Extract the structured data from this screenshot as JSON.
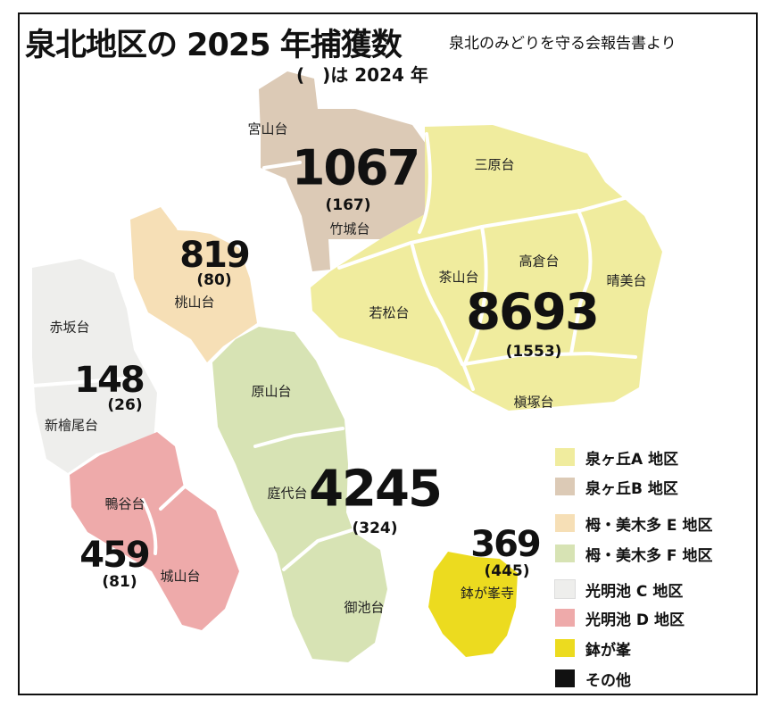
{
  "title": "泉北地区の 2025 年捕獲数",
  "subtitle": "(　)は 2024 年",
  "source": "泉北のみどりを守る会報告書より",
  "colors": {
    "A": "#f0ec9e",
    "B": "#dccab6",
    "E": "#f6dfb6",
    "F": "#d7e3b4",
    "C": "#eeeeec",
    "D": "#eeaaaa",
    "hachi": "#ecdb1f",
    "other": "#111111"
  },
  "districts": [
    {
      "key": "B",
      "count": "1067",
      "prev": "(167)"
    },
    {
      "key": "E",
      "count": "819",
      "prev": "(80)"
    },
    {
      "key": "A",
      "count": "8693",
      "prev": "(1553)"
    },
    {
      "key": "C",
      "count": "148",
      "prev": "(26)"
    },
    {
      "key": "F",
      "count": "4245",
      "prev": "(324)"
    },
    {
      "key": "D",
      "count": "459",
      "prev": "(81)"
    },
    {
      "key": "hachi",
      "count": "369",
      "prev": "(445)"
    }
  ],
  "area_names": {
    "miyayamadai": "宮山台",
    "takeshirodai": "竹城台",
    "miharadai": "三原台",
    "takakuradai": "高倉台",
    "chayamadai": "茶山台",
    "harumidai": "晴美台",
    "wakamatsudai": "若松台",
    "makizukadai": "槇塚台",
    "momoyamadai": "桃山台",
    "akasakadai": "赤坂台",
    "shinhinokiodai": "新檜尾台",
    "harayamadai": "原山台",
    "teishirodai": "庭代台",
    "miikedai": "御池台",
    "shigitanidai": "鴨谷台",
    "shiroyamadai": "城山台",
    "hachigamine": "鉢が峯寺"
  },
  "legend": [
    {
      "key": "A",
      "label": "泉ヶ丘A 地区"
    },
    {
      "key": "B",
      "label": "泉ヶ丘B 地区"
    },
    {
      "key": "E",
      "label": "栂・美木多 E 地区"
    },
    {
      "key": "F",
      "label": "栂・美木多 F 地区"
    },
    {
      "key": "C",
      "label": "光明池 C 地区"
    },
    {
      "key": "D",
      "label": "光明池 D 地区"
    },
    {
      "key": "hachi",
      "label": "鉢が峯"
    },
    {
      "key": "other",
      "label": "その他"
    }
  ]
}
